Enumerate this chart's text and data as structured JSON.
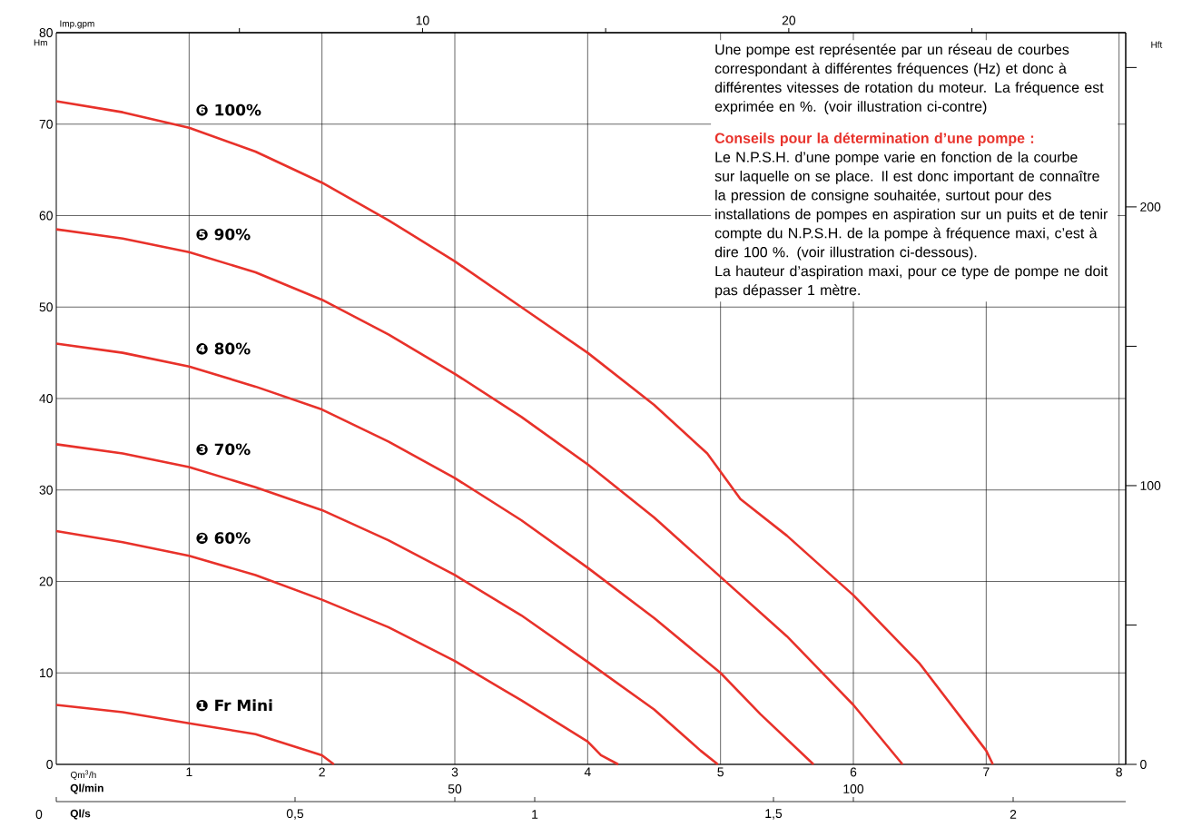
{
  "chart_data": {
    "type": "line",
    "xlabel": "Qm$^{3}$/h",
    "ylabel": "Hm",
    "y2label": "Hft",
    "x2label": "Imp.gpm",
    "xlim": [
      0,
      8.05
    ],
    "xticks": [
      1,
      2,
      3,
      4,
      5,
      6,
      7,
      8
    ],
    "ylim": [
      0,
      80
    ],
    "yticks": [
      0,
      10,
      20,
      30,
      40,
      50,
      60,
      70,
      80
    ],
    "y2lim": [
      0,
      262.5
    ],
    "y2ticks": [
      0,
      {
        "value": 50,
        "label": null
      },
      100,
      {
        "value": 150,
        "label": null
      },
      200,
      {
        "value": 250,
        "label": null
      }
    ],
    "x2lim": [
      0,
      29.2
    ],
    "x2ticks": [
      {
        "value": 5,
        "label": null
      },
      10,
      {
        "value": 15,
        "label": null
      },
      20,
      {
        "value": 25,
        "label": null
      }
    ],
    "grid": true,
    "series": [
      {
        "name": "❶ Fr Mini",
        "color": "#e8312a",
        "x": [
          0,
          0.5,
          1,
          1.5,
          2,
          2.09
        ],
        "values": [
          6.5,
          5.7,
          4.5,
          3.3,
          1,
          0
        ]
      },
      {
        "name": "❷ 60%",
        "color": "#e8312a",
        "x": [
          0,
          0.5,
          1,
          1.5,
          2,
          2.5,
          3,
          3.5,
          4,
          4.1,
          4.23
        ],
        "values": [
          25.5,
          24.3,
          22.8,
          20.7,
          18,
          15,
          11.3,
          7,
          2.5,
          1,
          0
        ]
      },
      {
        "name": "❸ 70%",
        "color": "#e8312a",
        "x": [
          0,
          0.5,
          1,
          1.5,
          2,
          2.5,
          3,
          3.5,
          4,
          4.5,
          4.85,
          4.98
        ],
        "values": [
          35,
          34,
          32.5,
          30.3,
          27.8,
          24.5,
          20.7,
          16.3,
          11.2,
          6,
          1.5,
          0
        ]
      },
      {
        "name": "❹ 80%",
        "color": "#e8312a",
        "x": [
          0,
          0.5,
          1,
          1.5,
          2,
          2.5,
          3,
          3.5,
          4,
          4.5,
          5,
          5.3,
          5.7
        ],
        "values": [
          46,
          45,
          43.5,
          41.3,
          38.8,
          35.3,
          31.3,
          26.7,
          21.5,
          16,
          10,
          5.5,
          0
        ]
      },
      {
        "name": "❺ 90%",
        "color": "#e8312a",
        "x": [
          0,
          0.5,
          1,
          1.5,
          2,
          2.5,
          3,
          3.5,
          4,
          4.5,
          5,
          5.5,
          6,
          6.37
        ],
        "values": [
          58.5,
          57.5,
          56,
          53.8,
          50.8,
          47,
          42.7,
          38,
          32.8,
          27,
          20.5,
          14,
          6.5,
          0
        ]
      },
      {
        "name": "❻ 100%",
        "color": "#e8312a",
        "x": [
          0,
          0.5,
          1,
          1.5,
          2,
          2.5,
          3,
          3.5,
          4,
          4.5,
          4.9,
          5.15,
          5.5,
          6,
          6.5,
          7,
          7.05
        ],
        "values": [
          72.5,
          71.3,
          69.6,
          67,
          63.6,
          59.5,
          55,
          50,
          45,
          39.3,
          34,
          29,
          25,
          18.5,
          11,
          1.5,
          0
        ]
      }
    ],
    "annotations": [
      "Une pompe est représentée par un réseau de courbes correspondant à différentes fréquences (Hz) et donc à différentes vitesses de rotation du moteur. La fréquence est exprimée en %. (voir illustration ci-contre)",
      "Conseils pour la détermination d’une pompe :",
      "Le N.P.S.H. d’une pompe varie en fonction de la courbe sur laquelle on se place. Il est donc important de connaître la pression de consigne souhaitée, surtout pour des installations de pompes en aspiration sur un puits et de tenir compte du N.P.S.H. de la pompe à fréquence maxi, c’est à dire 100 %. (voir illustration ci-dessous).",
      "La hauteur d’aspiration maxi, pour ce type de pompe ne doit pas dépasser 1 mètre.",
      "Ql/min",
      "50",
      "100",
      "Ql/s",
      "0",
      "0,5",
      "1",
      "1,5",
      "2"
    ]
  }
}
